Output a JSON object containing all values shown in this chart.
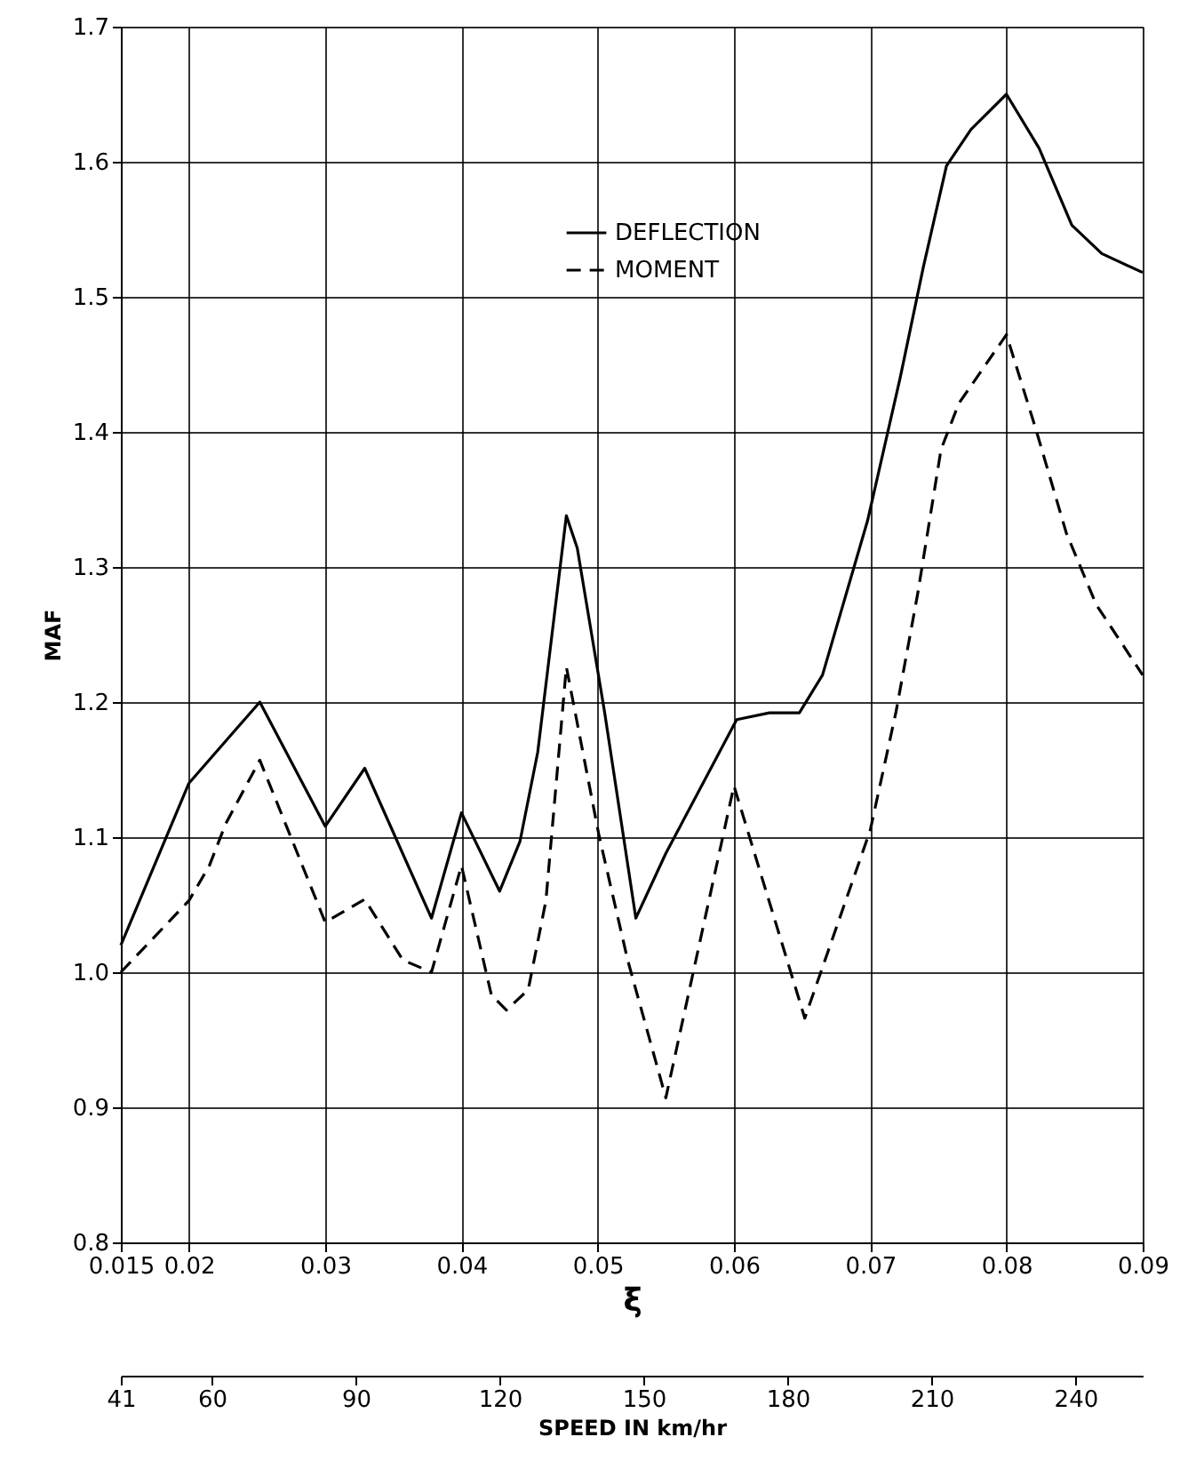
{
  "chart_data": {
    "type": "line",
    "xlabel": "ξ",
    "ylabel": "MAF",
    "x2label": "SPEED IN km/hr",
    "xlim": [
      0.015,
      0.09
    ],
    "xticks": [
      0.015,
      0.02,
      0.03,
      0.04,
      0.05,
      0.06,
      0.07,
      0.08,
      0.09
    ],
    "ylim": [
      0.8,
      1.7
    ],
    "yticks": [
      {
        "value": 0.8,
        "label": "0.8"
      },
      {
        "value": 0.9,
        "label": "0.9"
      },
      {
        "value": 1.0,
        "label": "1.0"
      },
      {
        "value": 1.1,
        "label": "1.1"
      },
      {
        "value": 1.2,
        "label": "1.2"
      },
      {
        "value": 1.3,
        "label": "1.3"
      },
      {
        "value": 1.4,
        "label": "1.4"
      },
      {
        "value": 1.5,
        "label": "1.5"
      },
      {
        "value": 1.6,
        "label": "1.6"
      },
      {
        "value": 1.7,
        "label": "1.7"
      }
    ],
    "x2lim": [
      41,
      254
    ],
    "x2ticks": [
      41,
      60,
      90,
      120,
      150,
      180,
      210,
      240
    ],
    "grid": true,
    "legend": "top",
    "marker": "none",
    "series": [
      {
        "name": "DEFLECTION",
        "color": "#000000",
        "line_style": "solid",
        "x": [
          0.015,
          0.02,
          0.0252,
          0.03,
          0.0329,
          0.0378,
          0.04,
          0.0428,
          0.0443,
          0.0456,
          0.0477,
          0.0485,
          0.0505,
          0.0528,
          0.055,
          0.0602,
          0.0626,
          0.0648,
          0.0665,
          0.0698,
          0.0722,
          0.0739,
          0.0756,
          0.0774,
          0.08,
          0.0824,
          0.0848,
          0.087,
          0.09
        ],
        "values": [
          1.02,
          1.14,
          1.2,
          1.108,
          1.151,
          1.04,
          1.118,
          1.06,
          1.097,
          1.163,
          1.338,
          1.314,
          1.193,
          1.04,
          1.088,
          1.187,
          1.192,
          1.192,
          1.22,
          1.334,
          1.44,
          1.522,
          1.597,
          1.624,
          1.65,
          1.61,
          1.553,
          1.532,
          1.518
        ]
      },
      {
        "name": "MOMENT",
        "color": "#000000",
        "line_style": "dashed",
        "x": [
          0.015,
          0.02,
          0.0215,
          0.0227,
          0.0252,
          0.03,
          0.0329,
          0.0357,
          0.0378,
          0.04,
          0.0422,
          0.0433,
          0.0449,
          0.0462,
          0.0477,
          0.0501,
          0.0522,
          0.055,
          0.06,
          0.0652,
          0.07,
          0.0719,
          0.0735,
          0.0752,
          0.0765,
          0.08,
          0.0821,
          0.0844,
          0.0866,
          0.09
        ],
        "values": [
          1.0,
          1.053,
          1.079,
          1.11,
          1.157,
          1.037,
          1.054,
          1.009,
          1.0,
          1.079,
          0.983,
          0.972,
          0.987,
          1.053,
          1.226,
          1.101,
          1.009,
          0.907,
          1.138,
          0.966,
          1.105,
          1.193,
          1.281,
          1.387,
          1.421,
          1.472,
          1.404,
          1.325,
          1.272,
          1.22
        ]
      }
    ]
  }
}
